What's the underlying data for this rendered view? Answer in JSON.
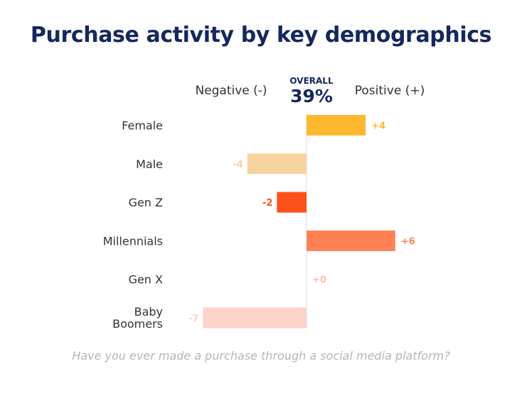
{
  "chart_data": {
    "type": "bar",
    "orientation": "horizontal-diverging",
    "title": "Purchase activity by key demographics",
    "negative_label": "Negative (-)",
    "positive_label": "Positive (+)",
    "overall_label": "OVERALL",
    "overall_value": "39%",
    "categories": [
      "Female",
      "Male",
      "Gen Z",
      "Millennials",
      "Gen X",
      "Baby Boomers"
    ],
    "values": [
      4,
      -4,
      -2,
      6,
      0,
      -7
    ],
    "value_labels": [
      "+4",
      "-4",
      "-2",
      "+6",
      "+0",
      "-7"
    ],
    "colors": [
      "#fdb92e",
      "#f6d39e",
      "#fe5019",
      "#fe8256",
      "#fbbfb3",
      "#fdd3ca"
    ],
    "label_colors": [
      "#fdb92e",
      "#f6d39e",
      "#fe5019",
      "#fe8256",
      "#fbbfb3",
      "#fdd3ca"
    ],
    "xlim": [
      -7,
      6
    ],
    "question": "Have you ever made a purchase through a social media platform?"
  }
}
